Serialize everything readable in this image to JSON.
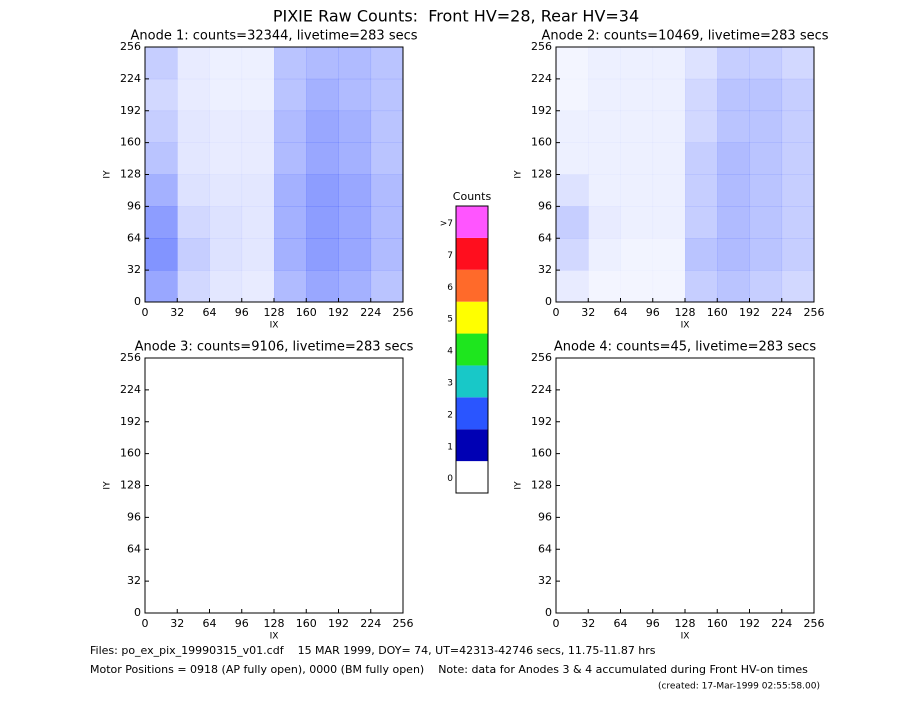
{
  "title": "PIXIE Raw Counts:  Front HV=28, Rear HV=34",
  "chart_data": [
    {
      "type": "heatmap",
      "title": "Anode 1: counts=32344, livetime=283 secs",
      "xlabel": "IX",
      "ylabel": "IY",
      "xlim": [
        0,
        256
      ],
      "ylim": [
        0,
        256
      ],
      "xticks": [
        0,
        32,
        64,
        96,
        128,
        160,
        192,
        224,
        256
      ],
      "yticks": [
        0,
        32,
        64,
        96,
        128,
        160,
        192,
        224,
        256
      ],
      "color": "#1c3cff",
      "z": [
        [
          25,
          10,
          8,
          8,
          30,
          35,
          35,
          30
        ],
        [
          20,
          10,
          8,
          8,
          30,
          40,
          35,
          30
        ],
        [
          25,
          12,
          10,
          10,
          35,
          45,
          40,
          30
        ],
        [
          30,
          12,
          10,
          10,
          35,
          45,
          40,
          30
        ],
        [
          40,
          15,
          12,
          12,
          40,
          50,
          45,
          35
        ],
        [
          50,
          20,
          15,
          12,
          40,
          50,
          45,
          35
        ],
        [
          55,
          25,
          15,
          12,
          40,
          50,
          45,
          35
        ],
        [
          45,
          20,
          12,
          10,
          35,
          45,
          40,
          30
        ]
      ]
    },
    {
      "type": "heatmap",
      "title": "Anode 2: counts=10469, livetime=283 secs",
      "xlabel": "IX",
      "ylabel": "IY",
      "xlim": [
        0,
        256
      ],
      "ylim": [
        0,
        256
      ],
      "xticks": [
        0,
        32,
        64,
        96,
        128,
        160,
        192,
        224,
        256
      ],
      "yticks": [
        0,
        32,
        64,
        96,
        128,
        160,
        192,
        224,
        256
      ],
      "color": "#1c3cff",
      "z": [
        [
          5,
          8,
          8,
          8,
          15,
          25,
          25,
          20
        ],
        [
          5,
          8,
          8,
          8,
          20,
          30,
          30,
          25
        ],
        [
          8,
          8,
          8,
          8,
          20,
          30,
          30,
          25
        ],
        [
          8,
          8,
          8,
          8,
          25,
          35,
          30,
          25
        ],
        [
          15,
          8,
          8,
          8,
          25,
          35,
          30,
          25
        ],
        [
          25,
          10,
          8,
          8,
          25,
          35,
          30,
          25
        ],
        [
          20,
          8,
          6,
          6,
          30,
          35,
          30,
          25
        ],
        [
          10,
          5,
          5,
          5,
          25,
          30,
          25,
          20
        ]
      ]
    },
    {
      "type": "heatmap",
      "title": "Anode 3: counts=9106, livetime=283 secs",
      "xlabel": "IX",
      "ylabel": "IY",
      "xlim": [
        0,
        256
      ],
      "ylim": [
        0,
        256
      ],
      "xticks": [
        0,
        32,
        64,
        96,
        128,
        160,
        192,
        224,
        256
      ],
      "yticks": [
        0,
        32,
        64,
        96,
        128,
        160,
        192,
        224,
        256
      ]
    },
    {
      "type": "heatmap",
      "title": "Anode 4: counts=45, livetime=283 secs",
      "xlabel": "IX",
      "ylabel": "IY",
      "xlim": [
        0,
        256
      ],
      "ylim": [
        0,
        256
      ],
      "xticks": [
        0,
        32,
        64,
        96,
        128,
        160,
        192,
        224,
        256
      ],
      "yticks": [
        0,
        32,
        64,
        96,
        128,
        160,
        192,
        224,
        256
      ]
    },
    {
      "type": "colorbar",
      "title": "Counts",
      "categories": [
        "0",
        "1",
        "2",
        "3",
        "4",
        "5",
        "6",
        "7",
        ">7"
      ],
      "colors": [
        "#ffffff",
        "#0000b4",
        "#2a55ff",
        "#18c8c8",
        "#1ee61e",
        "#ffff00",
        "#ff6a2a",
        "#ff0e1e",
        "#ff55ff"
      ]
    }
  ],
  "footer": {
    "files": "Files: po_ex_pix_19990315_v01.cdf    15 MAR 1999, DOY= 74, UT=42313-42746 secs, 11.75-11.87 hrs",
    "motor": "Motor Positions = 0918 (AP fully open), 0000 (BM fully open)    Note: data for Anodes 3 & 4 accumulated during Front HV-on times",
    "created": "(created: 17-Mar-1999 02:55:58.00)"
  }
}
